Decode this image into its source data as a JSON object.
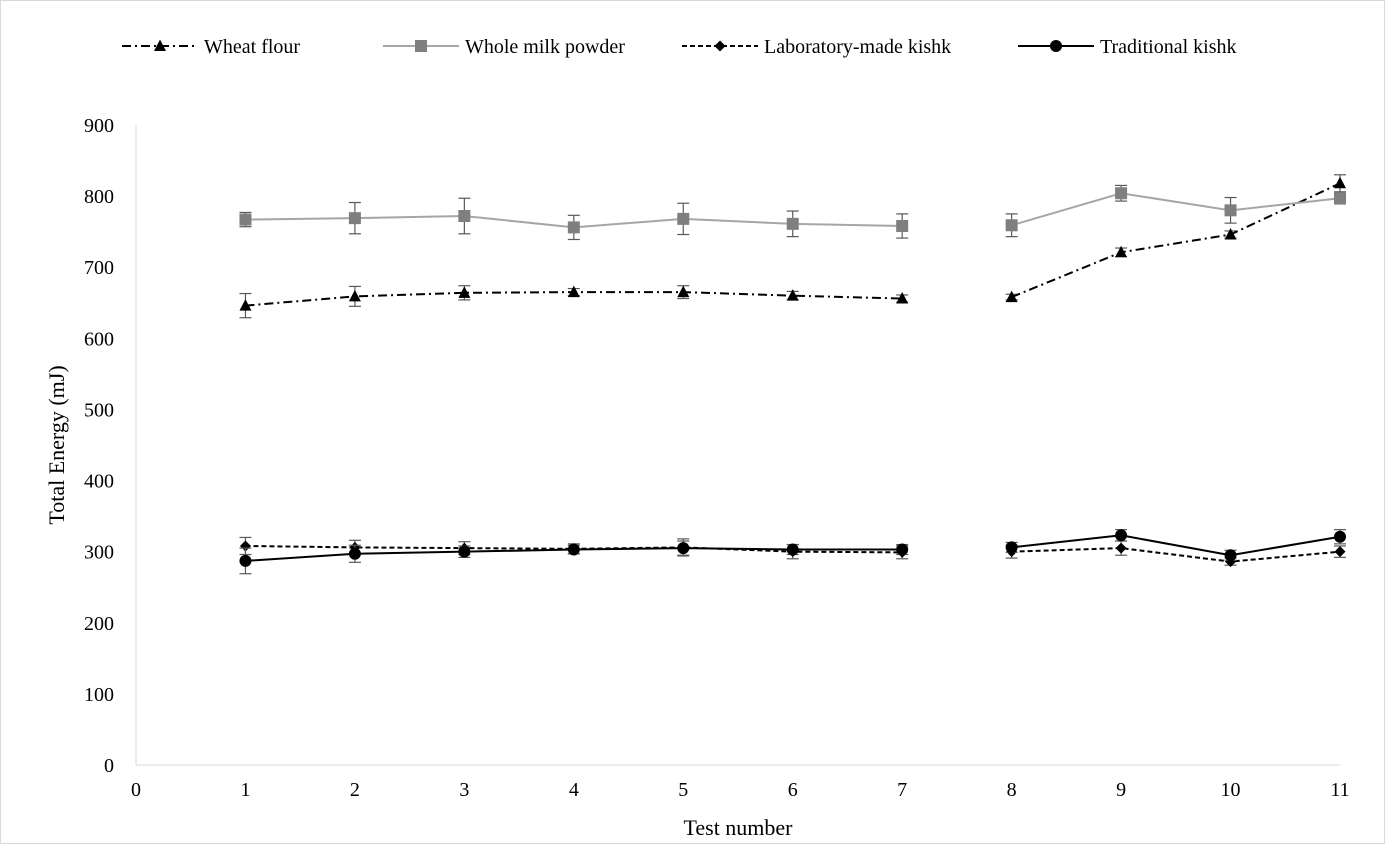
{
  "chart_data": {
    "type": "line",
    "title": "",
    "xlabel": "Test number",
    "ylabel": "Total Energy (mJ)",
    "xlim": [
      0,
      11
    ],
    "ylim": [
      0,
      900
    ],
    "x_ticks": [
      "0",
      "1",
      "2",
      "3",
      "4",
      "5",
      "6",
      "7",
      "8",
      "9",
      "10",
      "11"
    ],
    "y_ticks": [
      "0",
      "100",
      "200",
      "300",
      "400",
      "500",
      "600",
      "700",
      "800",
      "900"
    ],
    "grid": false,
    "legend_position": "top",
    "x": [
      1,
      2,
      3,
      4,
      5,
      6,
      7,
      8,
      9,
      10,
      11
    ],
    "segment_break_after_x": 7,
    "series": [
      {
        "name": "Wheat flour",
        "marker": "triangle",
        "line_style": "dash-dot",
        "color": "#000000",
        "values": [
          646,
          659,
          664,
          665,
          665,
          660,
          656,
          658,
          721,
          746,
          818
        ],
        "errors": [
          17,
          14,
          10,
          5,
          9,
          6,
          5,
          4,
          6,
          5,
          12
        ]
      },
      {
        "name": "Whole milk powder",
        "marker": "square",
        "line_style": "solid",
        "color": "#a6a6a6",
        "marker_color": "#7f7f7f",
        "values": [
          767,
          769,
          772,
          756,
          768,
          761,
          758,
          759,
          804,
          780,
          797
        ],
        "errors": [
          10,
          22,
          25,
          17,
          22,
          18,
          17,
          16,
          11,
          18,
          8
        ]
      },
      {
        "name": "Laboratory-made kishk",
        "marker": "diamond",
        "line_style": "dashed",
        "color": "#000000",
        "values": [
          308,
          306,
          305,
          304,
          306,
          300,
          299,
          300,
          305,
          286,
          300
        ],
        "errors": [
          12,
          10,
          9,
          7,
          12,
          10,
          9,
          9,
          10,
          5,
          8
        ]
      },
      {
        "name": "Traditional kishk",
        "marker": "circle",
        "line_style": "solid",
        "color": "#000000",
        "values": [
          287,
          297,
          300,
          303,
          305,
          303,
          303,
          306,
          323,
          295,
          321
        ],
        "errors": [
          18,
          12,
          8,
          6,
          10,
          7,
          7,
          7,
          8,
          7,
          10
        ]
      }
    ]
  }
}
